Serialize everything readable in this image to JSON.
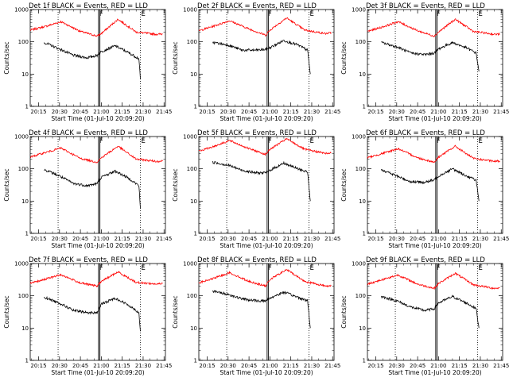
{
  "chart_data": {
    "type": "line",
    "layout": "3x3 grid",
    "y_scale": "log",
    "ylim": [
      1,
      1000
    ],
    "y_ticks": [
      "1",
      "10",
      "100",
      "1000"
    ],
    "ylabel": "Counts/sec",
    "x_ticks": [
      "20:15",
      "20:30",
      "20:45",
      "21:00",
      "21:15",
      "21:30",
      "21:45"
    ],
    "xlabel": "Start Time (01-Jul-10 20:09:20)",
    "series_colors": {
      "events": "#000000",
      "lld": "#ff0000"
    },
    "markers": [
      {
        "label": "",
        "time": "20:29",
        "style": "dotted"
      },
      {
        "label": "F",
        "time": "20:58",
        "style": "solid"
      },
      {
        "label": "",
        "time": "20:59",
        "style": "solid"
      },
      {
        "label": "E",
        "time": "21:28",
        "style": "dotted"
      }
    ],
    "panels": [
      {
        "title": "Det 1f BLACK = Events, RED = LLD",
        "events": {
          "x": [
            "20:19",
            "20:30",
            "20:40",
            "20:50",
            "20:57",
            "21:00",
            "21:10",
            "21:20",
            "21:27",
            "21:28"
          ],
          "y": [
            95,
            60,
            38,
            32,
            38,
            50,
            75,
            45,
            30,
            7
          ]
        },
        "lld": {
          "x": [
            "20:09",
            "20:20",
            "20:31",
            "20:45",
            "20:57",
            "21:00",
            "21:12",
            "21:25",
            "21:40",
            "21:44"
          ],
          "y": [
            230,
            300,
            420,
            210,
            150,
            180,
            500,
            200,
            170,
            175
          ]
        }
      },
      {
        "title": "Det 2f BLACK = Events, RED = LLD",
        "events": {
          "x": [
            "20:19",
            "20:30",
            "20:40",
            "20:50",
            "20:57",
            "21:00",
            "21:10",
            "21:20",
            "21:27",
            "21:29"
          ],
          "y": [
            95,
            80,
            55,
            55,
            58,
            65,
            110,
            80,
            55,
            10
          ]
        },
        "lld": {
          "x": [
            "20:09",
            "20:20",
            "20:31",
            "20:45",
            "20:57",
            "21:00",
            "21:12",
            "21:25",
            "21:40",
            "21:44"
          ],
          "y": [
            220,
            310,
            450,
            250,
            160,
            230,
            550,
            230,
            180,
            190
          ]
        }
      },
      {
        "title": "Det 3f BLACK = Events, RED = LLD",
        "events": {
          "x": [
            "20:19",
            "20:30",
            "20:40",
            "20:50",
            "20:57",
            "21:00",
            "21:10",
            "21:20",
            "21:27",
            "21:29"
          ],
          "y": [
            95,
            70,
            45,
            40,
            45,
            60,
            95,
            65,
            45,
            12
          ]
        },
        "lld": {
          "x": [
            "20:09",
            "20:20",
            "20:31",
            "20:45",
            "20:57",
            "21:00",
            "21:12",
            "21:25",
            "21:40",
            "21:44"
          ],
          "y": [
            210,
            290,
            420,
            220,
            150,
            200,
            500,
            210,
            170,
            175
          ]
        }
      },
      {
        "title": "Det 4f BLACK = Events, RED = LLD",
        "events": {
          "x": [
            "20:19",
            "20:30",
            "20:40",
            "20:50",
            "20:57",
            "21:00",
            "21:10",
            "21:20",
            "21:27",
            "21:28"
          ],
          "y": [
            95,
            60,
            35,
            30,
            35,
            55,
            85,
            50,
            30,
            6
          ]
        },
        "lld": {
          "x": [
            "20:09",
            "20:20",
            "20:31",
            "20:45",
            "20:57",
            "21:00",
            "21:12",
            "21:25",
            "21:40",
            "21:44"
          ],
          "y": [
            230,
            320,
            440,
            210,
            160,
            220,
            500,
            200,
            170,
            175
          ]
        }
      },
      {
        "title": "Det 5f BLACK = Events, RED = LLD",
        "events": {
          "x": [
            "20:19",
            "20:30",
            "20:40",
            "20:50",
            "20:57",
            "21:00",
            "21:10",
            "21:20",
            "21:27",
            "21:29"
          ],
          "y": [
            160,
            130,
            90,
            75,
            75,
            90,
            150,
            100,
            80,
            10
          ]
        },
        "lld": {
          "x": [
            "20:09",
            "20:20",
            "20:31",
            "20:45",
            "20:57",
            "21:00",
            "21:12",
            "21:25",
            "21:40",
            "21:44"
          ],
          "y": [
            350,
            500,
            750,
            420,
            280,
            400,
            850,
            400,
            300,
            310
          ]
        }
      },
      {
        "title": "Det 6f BLACK = Events, RED = LLD",
        "events": {
          "x": [
            "20:19",
            "20:30",
            "20:40",
            "20:50",
            "20:57",
            "21:00",
            "21:10",
            "21:20",
            "21:27",
            "21:29"
          ],
          "y": [
            95,
            60,
            40,
            38,
            45,
            60,
            100,
            60,
            45,
            10
          ]
        },
        "lld": {
          "x": [
            "20:09",
            "20:20",
            "20:31",
            "20:45",
            "20:57",
            "21:00",
            "21:12",
            "21:25",
            "21:40",
            "21:44"
          ],
          "y": [
            220,
            300,
            420,
            220,
            160,
            230,
            500,
            210,
            170,
            175
          ]
        }
      },
      {
        "title": "Det 7f BLACK = Events, RED = LLD",
        "events": {
          "x": [
            "20:19",
            "20:30",
            "20:40",
            "20:50",
            "20:57",
            "21:00",
            "21:10",
            "21:20",
            "21:27",
            "21:28"
          ],
          "y": [
            90,
            60,
            35,
            30,
            30,
            55,
            85,
            50,
            30,
            8
          ]
        },
        "lld": {
          "x": [
            "20:09",
            "20:20",
            "20:31",
            "20:45",
            "20:57",
            "21:00",
            "21:12",
            "21:25",
            "21:40",
            "21:44"
          ],
          "y": [
            240,
            330,
            450,
            250,
            200,
            280,
            550,
            260,
            230,
            240
          ]
        }
      },
      {
        "title": "Det 8f BLACK = Events, RED = LLD",
        "events": {
          "x": [
            "20:19",
            "20:30",
            "20:40",
            "20:50",
            "20:57",
            "21:00",
            "21:10",
            "21:20",
            "21:27",
            "21:29"
          ],
          "y": [
            140,
            110,
            80,
            70,
            70,
            85,
            130,
            90,
            70,
            10
          ]
        },
        "lld": {
          "x": [
            "20:09",
            "20:20",
            "20:31",
            "20:45",
            "20:57",
            "21:00",
            "21:12",
            "21:25",
            "21:40",
            "21:44"
          ],
          "y": [
            250,
            350,
            520,
            280,
            200,
            320,
            650,
            280,
            200,
            210
          ]
        }
      },
      {
        "title": "Det 9f BLACK = Events, RED = LLD",
        "events": {
          "x": [
            "20:19",
            "20:30",
            "20:40",
            "20:50",
            "20:57",
            "21:00",
            "21:10",
            "21:20",
            "21:27",
            "21:29"
          ],
          "y": [
            95,
            70,
            45,
            35,
            40,
            60,
            95,
            60,
            40,
            10
          ]
        },
        "lld": {
          "x": [
            "20:09",
            "20:20",
            "20:31",
            "20:45",
            "20:57",
            "21:00",
            "21:12",
            "21:25",
            "21:40",
            "21:44"
          ],
          "y": [
            230,
            320,
            440,
            230,
            170,
            240,
            500,
            220,
            170,
            175
          ]
        }
      }
    ]
  }
}
